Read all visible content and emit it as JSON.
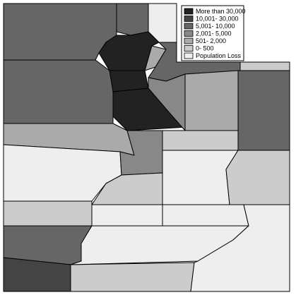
{
  "legend": {
    "items": [
      {
        "label": "More than 30,000",
        "color": "#222222"
      },
      {
        "label": "10,001- 30,000",
        "color": "#444444"
      },
      {
        "label": "5,001- 10,000",
        "color": "#666666"
      },
      {
        "label": "2,001- 5,000",
        "color": "#888888"
      },
      {
        "label": "501- 2,000",
        "color": "#aaaaaa"
      },
      {
        "label": "0- 500",
        "color": "#cccccc"
      },
      {
        "label": "Population Loss",
        "color": "#eeeeee"
      }
    ]
  }
}
